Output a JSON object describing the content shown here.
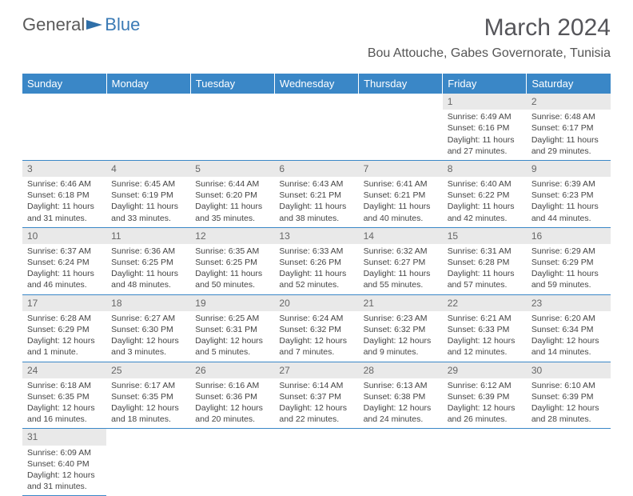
{
  "logo": {
    "part1": "General",
    "part2": "Blue"
  },
  "title": "March 2024",
  "location": "Bou Attouche, Gabes Governorate, Tunisia",
  "header_bg": "#3a87c7",
  "day_headers": [
    "Sunday",
    "Monday",
    "Tuesday",
    "Wednesday",
    "Thursday",
    "Friday",
    "Saturday"
  ],
  "weeks": [
    [
      null,
      null,
      null,
      null,
      null,
      {
        "n": "1",
        "sr": "6:49 AM",
        "ss": "6:16 PM",
        "dl": "11 hours and 27 minutes."
      },
      {
        "n": "2",
        "sr": "6:48 AM",
        "ss": "6:17 PM",
        "dl": "11 hours and 29 minutes."
      }
    ],
    [
      {
        "n": "3",
        "sr": "6:46 AM",
        "ss": "6:18 PM",
        "dl": "11 hours and 31 minutes."
      },
      {
        "n": "4",
        "sr": "6:45 AM",
        "ss": "6:19 PM",
        "dl": "11 hours and 33 minutes."
      },
      {
        "n": "5",
        "sr": "6:44 AM",
        "ss": "6:20 PM",
        "dl": "11 hours and 35 minutes."
      },
      {
        "n": "6",
        "sr": "6:43 AM",
        "ss": "6:21 PM",
        "dl": "11 hours and 38 minutes."
      },
      {
        "n": "7",
        "sr": "6:41 AM",
        "ss": "6:21 PM",
        "dl": "11 hours and 40 minutes."
      },
      {
        "n": "8",
        "sr": "6:40 AM",
        "ss": "6:22 PM",
        "dl": "11 hours and 42 minutes."
      },
      {
        "n": "9",
        "sr": "6:39 AM",
        "ss": "6:23 PM",
        "dl": "11 hours and 44 minutes."
      }
    ],
    [
      {
        "n": "10",
        "sr": "6:37 AM",
        "ss": "6:24 PM",
        "dl": "11 hours and 46 minutes."
      },
      {
        "n": "11",
        "sr": "6:36 AM",
        "ss": "6:25 PM",
        "dl": "11 hours and 48 minutes."
      },
      {
        "n": "12",
        "sr": "6:35 AM",
        "ss": "6:25 PM",
        "dl": "11 hours and 50 minutes."
      },
      {
        "n": "13",
        "sr": "6:33 AM",
        "ss": "6:26 PM",
        "dl": "11 hours and 52 minutes."
      },
      {
        "n": "14",
        "sr": "6:32 AM",
        "ss": "6:27 PM",
        "dl": "11 hours and 55 minutes."
      },
      {
        "n": "15",
        "sr": "6:31 AM",
        "ss": "6:28 PM",
        "dl": "11 hours and 57 minutes."
      },
      {
        "n": "16",
        "sr": "6:29 AM",
        "ss": "6:29 PM",
        "dl": "11 hours and 59 minutes."
      }
    ],
    [
      {
        "n": "17",
        "sr": "6:28 AM",
        "ss": "6:29 PM",
        "dl": "12 hours and 1 minute."
      },
      {
        "n": "18",
        "sr": "6:27 AM",
        "ss": "6:30 PM",
        "dl": "12 hours and 3 minutes."
      },
      {
        "n": "19",
        "sr": "6:25 AM",
        "ss": "6:31 PM",
        "dl": "12 hours and 5 minutes."
      },
      {
        "n": "20",
        "sr": "6:24 AM",
        "ss": "6:32 PM",
        "dl": "12 hours and 7 minutes."
      },
      {
        "n": "21",
        "sr": "6:23 AM",
        "ss": "6:32 PM",
        "dl": "12 hours and 9 minutes."
      },
      {
        "n": "22",
        "sr": "6:21 AM",
        "ss": "6:33 PM",
        "dl": "12 hours and 12 minutes."
      },
      {
        "n": "23",
        "sr": "6:20 AM",
        "ss": "6:34 PM",
        "dl": "12 hours and 14 minutes."
      }
    ],
    [
      {
        "n": "24",
        "sr": "6:18 AM",
        "ss": "6:35 PM",
        "dl": "12 hours and 16 minutes."
      },
      {
        "n": "25",
        "sr": "6:17 AM",
        "ss": "6:35 PM",
        "dl": "12 hours and 18 minutes."
      },
      {
        "n": "26",
        "sr": "6:16 AM",
        "ss": "6:36 PM",
        "dl": "12 hours and 20 minutes."
      },
      {
        "n": "27",
        "sr": "6:14 AM",
        "ss": "6:37 PM",
        "dl": "12 hours and 22 minutes."
      },
      {
        "n": "28",
        "sr": "6:13 AM",
        "ss": "6:38 PM",
        "dl": "12 hours and 24 minutes."
      },
      {
        "n": "29",
        "sr": "6:12 AM",
        "ss": "6:39 PM",
        "dl": "12 hours and 26 minutes."
      },
      {
        "n": "30",
        "sr": "6:10 AM",
        "ss": "6:39 PM",
        "dl": "12 hours and 28 minutes."
      }
    ],
    [
      {
        "n": "31",
        "sr": "6:09 AM",
        "ss": "6:40 PM",
        "dl": "12 hours and 31 minutes."
      },
      null,
      null,
      null,
      null,
      null,
      null
    ]
  ],
  "labels": {
    "sunrise": "Sunrise:",
    "sunset": "Sunset:",
    "daylight": "Daylight:"
  }
}
